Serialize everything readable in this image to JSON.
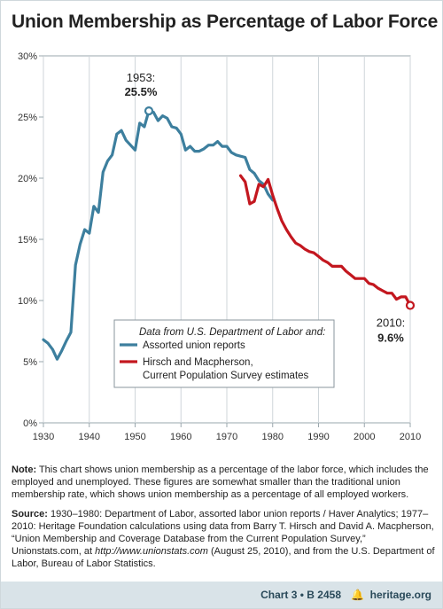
{
  "title": "Union Membership as Percentage of Labor Force",
  "chart_data": {
    "type": "line",
    "title": "Union Membership as Percentage of Labor Force",
    "xlabel": "",
    "ylabel": "",
    "xlim": [
      1930,
      2010
    ],
    "ylim": [
      0,
      30
    ],
    "x_ticks": [
      1930,
      1940,
      1950,
      1960,
      1970,
      1980,
      1990,
      2000,
      2010
    ],
    "y_ticks": [
      0,
      5,
      10,
      15,
      20,
      25,
      30
    ],
    "y_tick_labels": [
      "0%",
      "5%",
      "10%",
      "15%",
      "20%",
      "25%",
      "30%"
    ],
    "grid": "vertical",
    "legend_title": "Data from U.S. Department of Labor and:",
    "legend_placement": "bottom-center",
    "series": [
      {
        "name": "Assorted union reports",
        "color": "#3d7f9e",
        "x": [
          1930,
          1931,
          1932,
          1933,
          1934,
          1935,
          1936,
          1937,
          1938,
          1939,
          1940,
          1941,
          1942,
          1943,
          1944,
          1945,
          1946,
          1947,
          1948,
          1949,
          1950,
          1951,
          1952,
          1953,
          1954,
          1955,
          1956,
          1957,
          1958,
          1959,
          1960,
          1961,
          1962,
          1963,
          1964,
          1965,
          1966,
          1967,
          1968,
          1969,
          1970,
          1971,
          1972,
          1973,
          1974,
          1975,
          1976,
          1977,
          1978,
          1979,
          1980
        ],
        "y": [
          6.8,
          6.5,
          6.0,
          5.2,
          5.9,
          6.7,
          7.4,
          12.9,
          14.6,
          15.8,
          15.5,
          17.7,
          17.2,
          20.5,
          21.4,
          21.9,
          23.6,
          23.9,
          23.1,
          22.7,
          22.3,
          24.5,
          24.2,
          25.5,
          25.4,
          24.7,
          25.1,
          24.9,
          24.2,
          24.1,
          23.6,
          22.3,
          22.6,
          22.2,
          22.2,
          22.4,
          22.7,
          22.7,
          23.0,
          22.6,
          22.6,
          22.1,
          21.9,
          21.8,
          21.7,
          20.7,
          20.4,
          19.8,
          19.5,
          18.7,
          18.2
        ]
      },
      {
        "name": "Hirsch and Macpherson, Current Population Survey estimates",
        "color": "#c3171f",
        "x": [
          1973,
          1974,
          1975,
          1976,
          1977,
          1978,
          1979,
          1980,
          1981,
          1982,
          1983,
          1984,
          1985,
          1986,
          1987,
          1988,
          1989,
          1990,
          1991,
          1992,
          1993,
          1994,
          1995,
          1996,
          1997,
          1998,
          1999,
          2000,
          2001,
          2002,
          2003,
          2004,
          2005,
          2006,
          2007,
          2008,
          2009,
          2010
        ],
        "y": [
          20.2,
          19.7,
          17.9,
          18.1,
          19.5,
          19.3,
          19.9,
          18.6,
          17.5,
          16.5,
          15.8,
          15.2,
          14.7,
          14.5,
          14.2,
          14.0,
          13.9,
          13.6,
          13.3,
          13.1,
          12.8,
          12.8,
          12.8,
          12.4,
          12.1,
          11.8,
          11.8,
          11.8,
          11.4,
          11.3,
          11.0,
          10.8,
          10.6,
          10.6,
          10.1,
          10.3,
          10.3,
          9.6
        ]
      }
    ],
    "annotations": [
      {
        "label": "1953:",
        "value_label": "25.5%",
        "x": 1953,
        "y": 25.5
      },
      {
        "label": "2010:",
        "value_label": "9.6%",
        "x": 2010,
        "y": 9.6
      }
    ]
  },
  "note": {
    "label": "Note:",
    "text": " This chart shows union membership as a percentage of the labor force, which includes the employed and unemployed. These figures are somewhat smaller than the traditional union membership rate, which shows union membership as a percentage of all employed workers."
  },
  "source": {
    "label": "Source:",
    "text1": " 1930–1980: Department of Labor, assorted labor union reports / Haver Analytics; 1977–2010: Heritage Foundation calculations using data from Barry T. Hirsch and David A. Macpherson, “Union Membership and Coverage Database from the Current Population Survey,” Unionstats.com, at ",
    "url": "http://www.unionstats.com",
    "text2": " (August 25, 2010), and from the U.S. Department of Labor, Bureau of Labor Statistics."
  },
  "footer": {
    "chart_label": "Chart 3 • B 2458",
    "site": "heritage.org",
    "logo_icon": "bell-icon"
  }
}
